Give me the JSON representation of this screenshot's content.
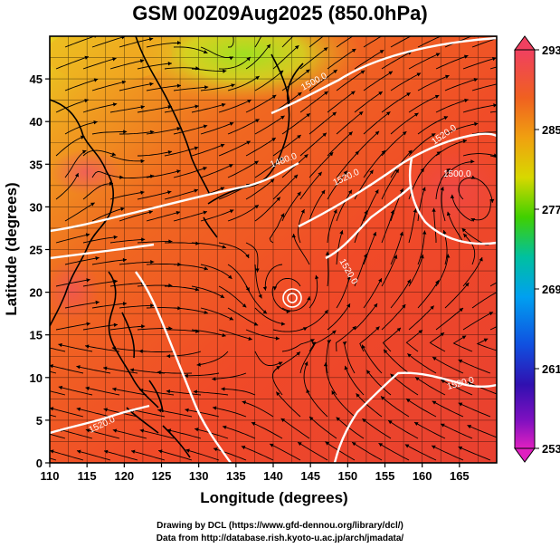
{
  "title": "GSM 00Z09Aug2025 (850.0hPa)",
  "x_axis": {
    "label": "Longitude (degrees)",
    "ticks": [
      "110",
      "115",
      "120",
      "125",
      "130",
      "135",
      "140",
      "145",
      "150",
      "155",
      "160",
      "165"
    ]
  },
  "y_axis": {
    "label": "Latitude  (degrees)",
    "ticks": [
      "0",
      "5",
      "10",
      "15",
      "20",
      "25",
      "30",
      "35",
      "40",
      "45"
    ]
  },
  "colorbar": {
    "ticks": [
      "293",
      "285",
      "277",
      "269",
      "261",
      "253"
    ],
    "colors": [
      "#f04060",
      "#f06020",
      "#f0a010",
      "#d8d800",
      "#40d000",
      "#00c0a0",
      "#00a0f0",
      "#1050e0",
      "#3010b0",
      "#8010c0",
      "#e020c0"
    ]
  },
  "contour_labels": [
    "1500.0",
    "1480.0",
    "1520.0",
    "1520.0",
    "1520.0",
    "1500.0",
    "1520.0",
    "1520.0"
  ],
  "credits": {
    "line1": "Drawing by DCL (https://www.gfd-dennou.org/library/dcl/)",
    "line2": "Data from http://database.rish.kyoto-u.ac.jp/arch/jmadata/"
  },
  "map_data": {
    "lon_range": [
      110,
      170
    ],
    "lat_range": [
      0,
      50
    ],
    "field": "temperature",
    "units": "K",
    "color_range": [
      253,
      293
    ],
    "overlay": "streamlines and geopotential height contours"
  }
}
